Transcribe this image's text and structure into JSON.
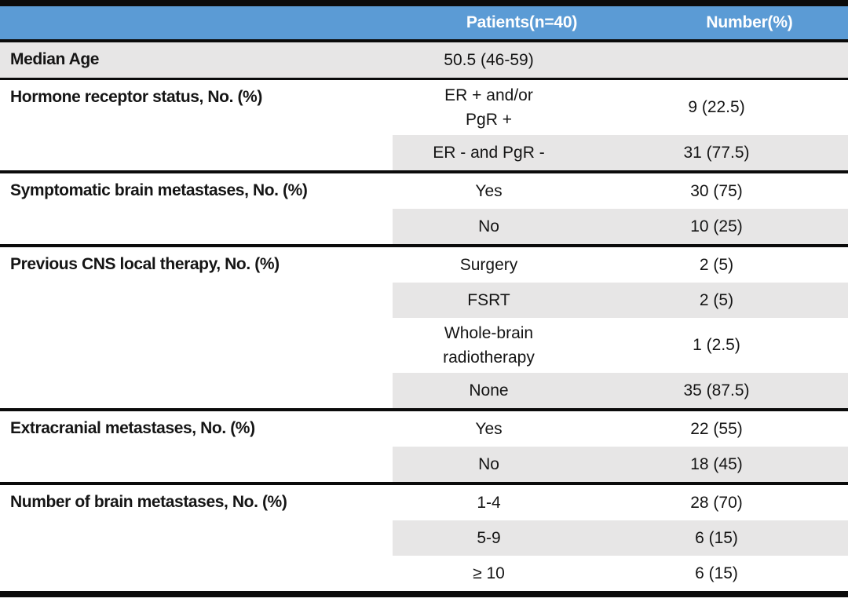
{
  "colors": {
    "header_bg": "#5b9bd5",
    "header_text": "#ffffff",
    "shaded_row": "#e7e6e6",
    "rule": "#0b0b0b",
    "text": "#151515"
  },
  "header": {
    "col2": "Patients(n=40)",
    "col3": "Number(%)"
  },
  "groups": [
    {
      "label": "Median Age",
      "rows": [
        {
          "value": "50.5 (46-59)",
          "number": ""
        }
      ]
    },
    {
      "label": "Hormone receptor status, No. (%)",
      "rows": [
        {
          "value": "ER + and/or\nPgR +",
          "number": "9 (22.5)"
        },
        {
          "value": "ER - and PgR -",
          "number": "31 (77.5)"
        }
      ]
    },
    {
      "label": "Symptomatic brain metastases, No. (%)",
      "rows": [
        {
          "value": "Yes",
          "number": "30 (75)"
        },
        {
          "value": "No",
          "number": "10 (25)"
        }
      ]
    },
    {
      "label": "Previous CNS local therapy, No. (%)",
      "rows": [
        {
          "value": "Surgery",
          "number": "2 (5)"
        },
        {
          "value": "FSRT",
          "number": "2 (5)"
        },
        {
          "value": "Whole-brain\nradiotherapy",
          "number": "1 (2.5)"
        },
        {
          "value": "None",
          "number": "35 (87.5)"
        }
      ]
    },
    {
      "label": "Extracranial metastases, No. (%)",
      "rows": [
        {
          "value": "Yes",
          "number": "22 (55)"
        },
        {
          "value": "No",
          "number": "18 (45)"
        }
      ]
    },
    {
      "label": "Number of brain metastases, No. (%)",
      "rows": [
        {
          "value": "1-4",
          "number": "28 (70)"
        },
        {
          "value": "5-9",
          "number": "6 (15)"
        },
        {
          "value": "≥ 10",
          "number": "6 (15)"
        }
      ]
    }
  ]
}
